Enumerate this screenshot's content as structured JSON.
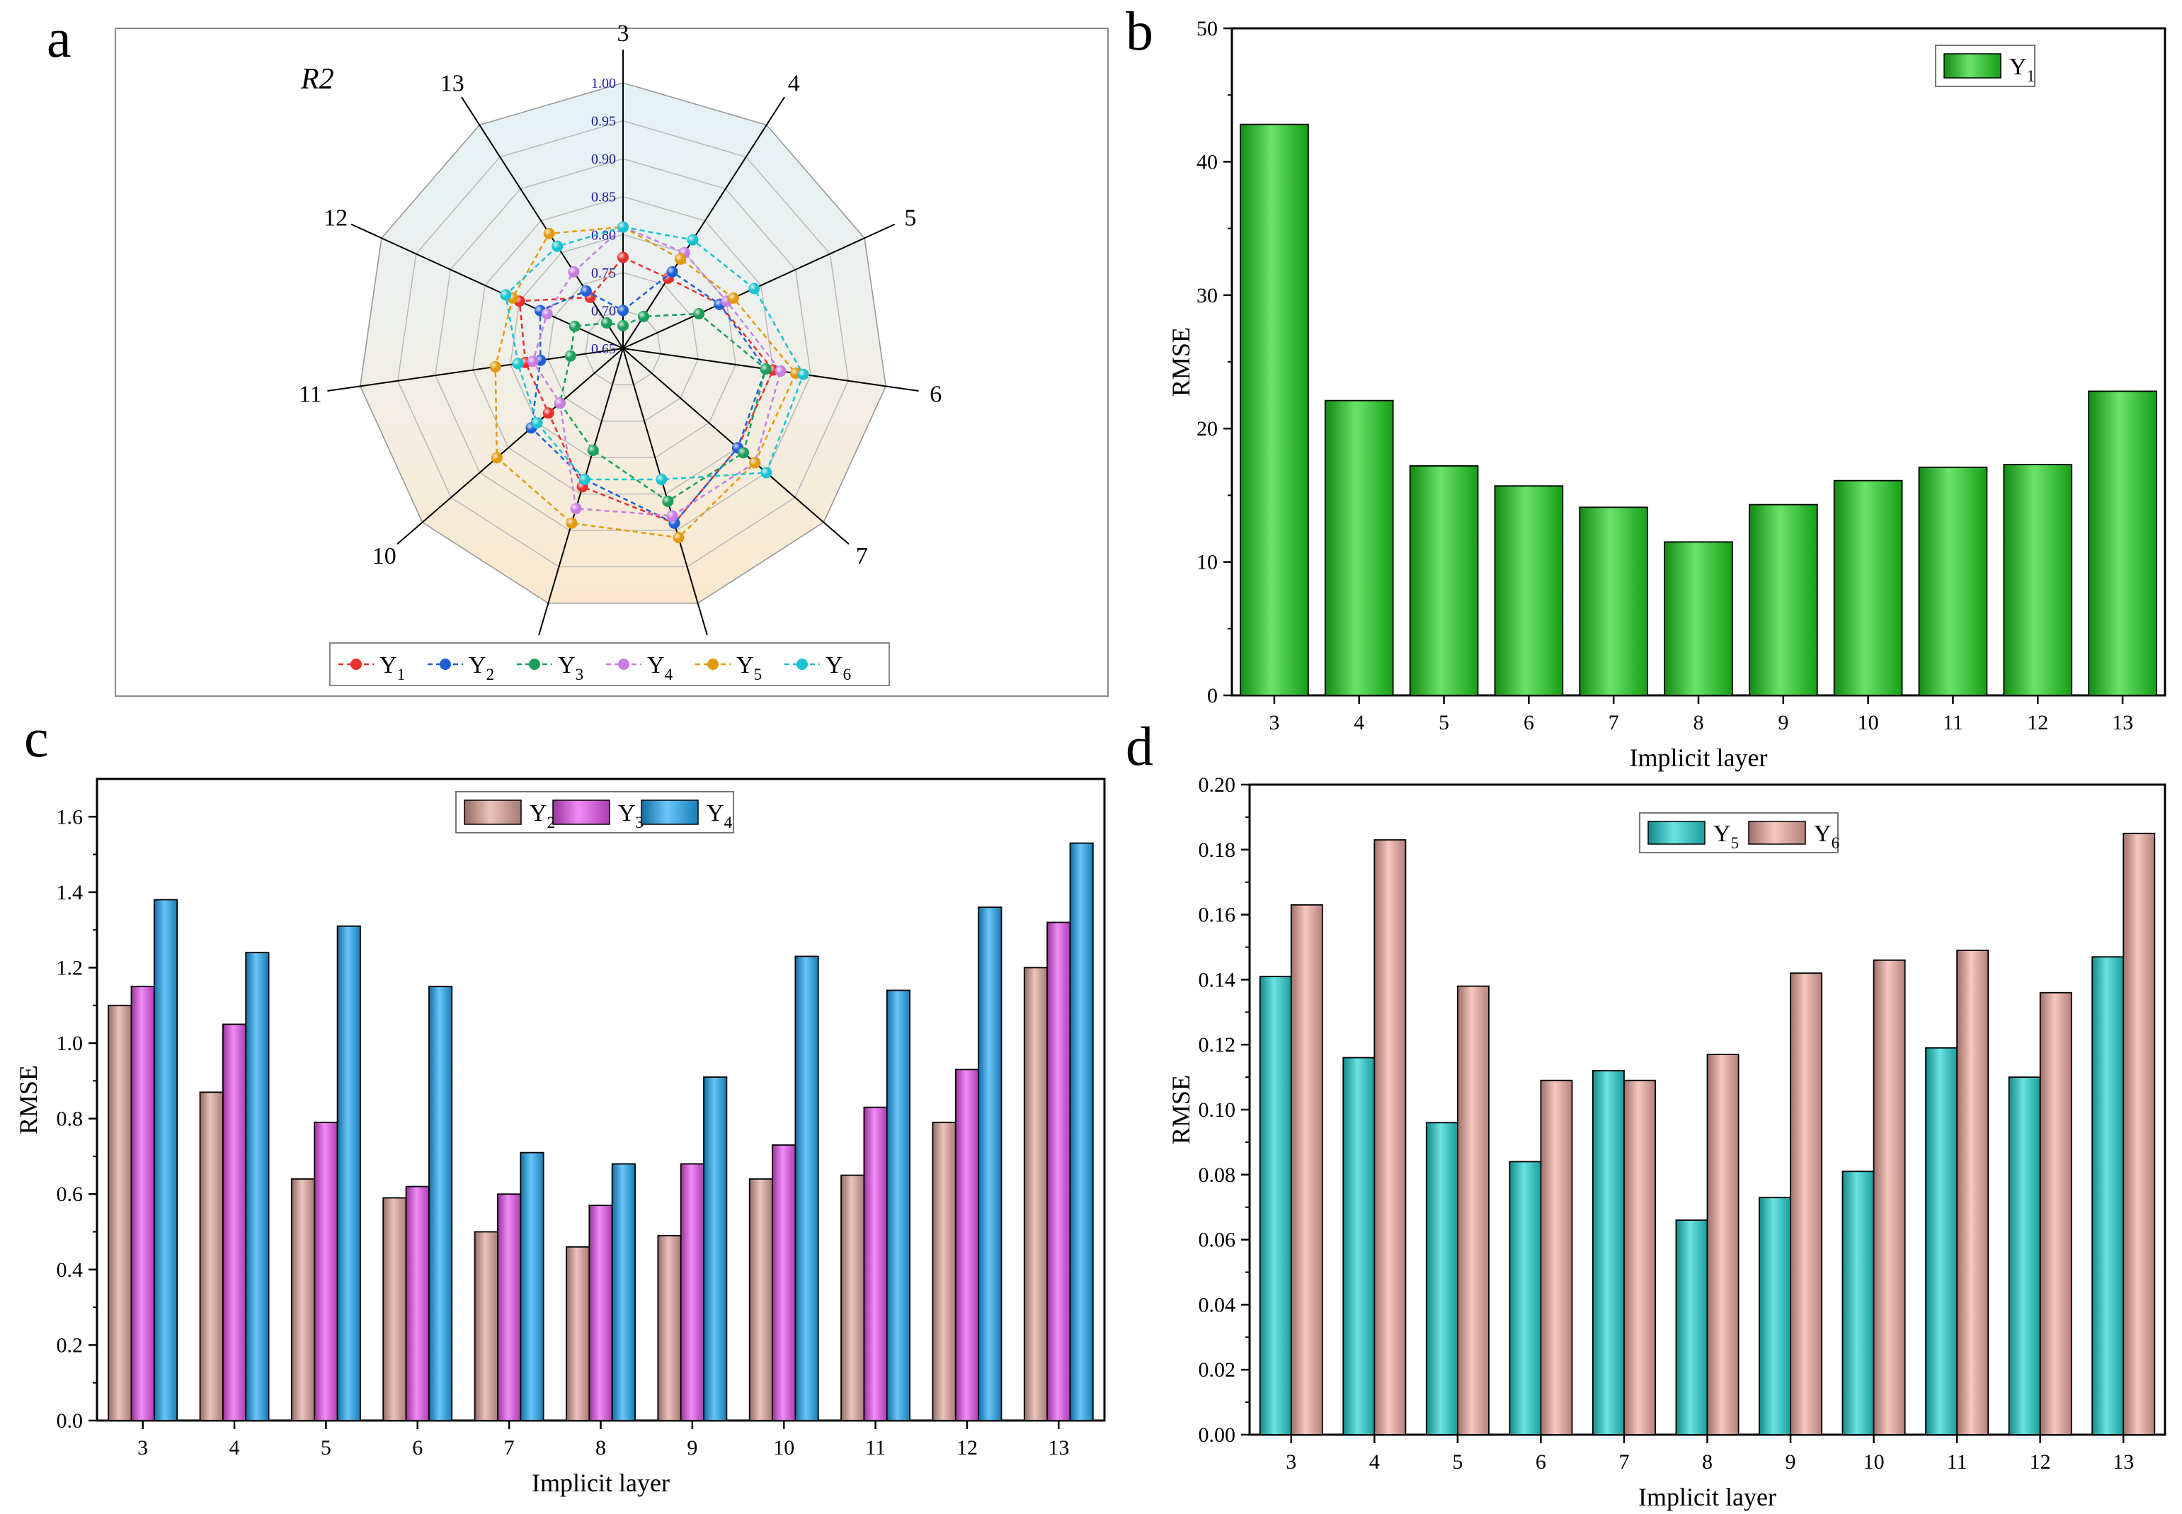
{
  "panels": {
    "a": "a",
    "b": "b",
    "c": "c",
    "d": "d"
  },
  "colors": {
    "Y1": "#e8302f",
    "Y2": "#1f5fd6",
    "Y3": "#1aa05a",
    "Y4": "#c77ee0",
    "Y5": "#e39a10",
    "Y6": "#19c3d0",
    "b_Y1": "#1bd41b",
    "c_Y2": "#e0a49a",
    "c_Y3": "#e84ff0",
    "c_Y4": "#1aa8f5",
    "d_Y5": "#1fd3d3",
    "d_Y6": "#f2aba0"
  },
  "chart_data": [
    {
      "panel": "a",
      "type": "radar",
      "title": "R2",
      "categories": [
        "3",
        "4",
        "5",
        "6",
        "7",
        "8",
        "9",
        "10",
        "11",
        "12",
        "13"
      ],
      "rticks": [
        "0.65",
        "0.70",
        "0.75",
        "0.80",
        "0.85",
        "0.90",
        "0.95",
        "1.00"
      ],
      "rlim": [
        0.65,
        1.0
      ],
      "series": [
        {
          "name": "Y1",
          "values": [
            0.77,
            0.76,
            0.79,
            0.85,
            0.85,
            0.89,
            0.84,
            0.78,
            0.78,
            0.8,
            0.73
          ]
        },
        {
          "name": "Y2",
          "values": [
            0.7,
            0.77,
            0.79,
            0.84,
            0.85,
            0.89,
            0.83,
            0.81,
            0.76,
            0.77,
            0.74
          ]
        },
        {
          "name": "Y3",
          "values": [
            0.68,
            0.7,
            0.76,
            0.84,
            0.86,
            0.86,
            0.79,
            0.76,
            0.72,
            0.72,
            0.69
          ]
        },
        {
          "name": "Y4",
          "values": [
            0.81,
            0.8,
            0.8,
            0.86,
            0.88,
            0.88,
            0.87,
            0.76,
            0.77,
            0.76,
            0.77
          ]
        },
        {
          "name": "Y5",
          "values": [
            0.81,
            0.79,
            0.81,
            0.88,
            0.88,
            0.91,
            0.89,
            0.87,
            0.82,
            0.81,
            0.83
          ]
        },
        {
          "name": "Y6",
          "values": [
            0.81,
            0.82,
            0.84,
            0.89,
            0.9,
            0.83,
            0.83,
            0.8,
            0.79,
            0.82,
            0.81
          ]
        }
      ],
      "legend": "bottom"
    },
    {
      "panel": "b",
      "type": "bar",
      "categories": [
        "3",
        "4",
        "5",
        "6",
        "7",
        "8",
        "9",
        "10",
        "11",
        "12",
        "13"
      ],
      "series": [
        {
          "name": "Y1",
          "values": [
            42.8,
            22.1,
            17.2,
            15.7,
            14.1,
            11.5,
            14.3,
            16.1,
            17.1,
            17.3,
            22.8
          ]
        }
      ],
      "xlabel": "Implicit layer",
      "ylabel": "RMSE",
      "ylim": [
        0,
        50
      ],
      "yticks": [
        "0",
        "10",
        "20",
        "30",
        "40",
        "50"
      ],
      "legend": "top-right"
    },
    {
      "panel": "c",
      "type": "bar",
      "categories": [
        "3",
        "4",
        "5",
        "6",
        "7",
        "8",
        "9",
        "10",
        "11",
        "12",
        "13"
      ],
      "series": [
        {
          "name": "Y2",
          "values": [
            1.1,
            0.87,
            0.64,
            0.59,
            0.5,
            0.46,
            0.49,
            0.64,
            0.65,
            0.79,
            1.2
          ]
        },
        {
          "name": "Y3",
          "values": [
            1.15,
            1.05,
            0.79,
            0.62,
            0.6,
            0.57,
            0.68,
            0.73,
            0.83,
            0.93,
            1.32
          ]
        },
        {
          "name": "Y4",
          "values": [
            1.38,
            1.24,
            1.31,
            1.15,
            0.71,
            0.68,
            0.91,
            1.23,
            1.14,
            1.36,
            1.53
          ]
        }
      ],
      "xlabel": "Implicit layer",
      "ylabel": "RMSE",
      "ylim": [
        0,
        1.7
      ],
      "yticks": [
        "0.0",
        "0.2",
        "0.4",
        "0.6",
        "0.8",
        "1.0",
        "1.2",
        "1.4",
        "1.6"
      ],
      "legend": "top-center"
    },
    {
      "panel": "d",
      "type": "bar",
      "categories": [
        "3",
        "4",
        "5",
        "6",
        "7",
        "8",
        "9",
        "10",
        "11",
        "12",
        "13"
      ],
      "series": [
        {
          "name": "Y5",
          "values": [
            0.141,
            0.116,
            0.096,
            0.084,
            0.112,
            0.066,
            0.073,
            0.081,
            0.119,
            0.11,
            0.147
          ]
        },
        {
          "name": "Y6",
          "values": [
            0.163,
            0.183,
            0.138,
            0.109,
            0.109,
            0.117,
            0.142,
            0.146,
            0.149,
            0.136,
            0.185
          ]
        }
      ],
      "xlabel": "Implicit layer",
      "ylabel": "RMSE",
      "ylim": [
        0,
        0.2
      ],
      "yticks": [
        "0.00",
        "0.02",
        "0.04",
        "0.06",
        "0.08",
        "0.10",
        "0.12",
        "0.14",
        "0.16",
        "0.18",
        "0.20"
      ],
      "legend": "top-center"
    }
  ]
}
